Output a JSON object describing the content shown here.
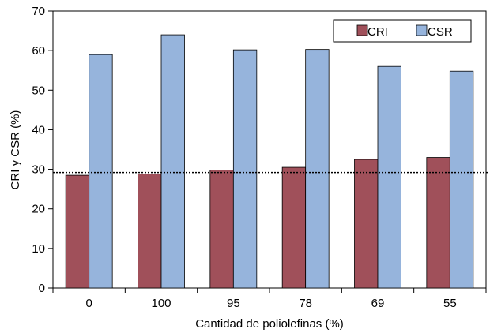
{
  "chart_data": {
    "type": "bar",
    "title": "",
    "xlabel": "Cantidad de poliolefinas (%)",
    "ylabel": "CRI y CSR (%)",
    "categories": [
      "0",
      "100",
      "95",
      "78",
      "69",
      "55"
    ],
    "series": [
      {
        "name": "CRI",
        "color": "#a0505a",
        "values": [
          28.5,
          28.8,
          29.8,
          30.5,
          32.5,
          33.0
        ]
      },
      {
        "name": "CSR",
        "color": "#96b4dc",
        "values": [
          59.0,
          64.0,
          60.2,
          60.3,
          56.0,
          54.8
        ]
      }
    ],
    "ylim": [
      0,
      70
    ],
    "yticks": [
      0,
      10,
      20,
      30,
      40,
      50,
      60,
      70
    ],
    "reference_line": {
      "y": 29.2,
      "style": "dotted"
    },
    "legend": "top-right",
    "grid": false
  }
}
